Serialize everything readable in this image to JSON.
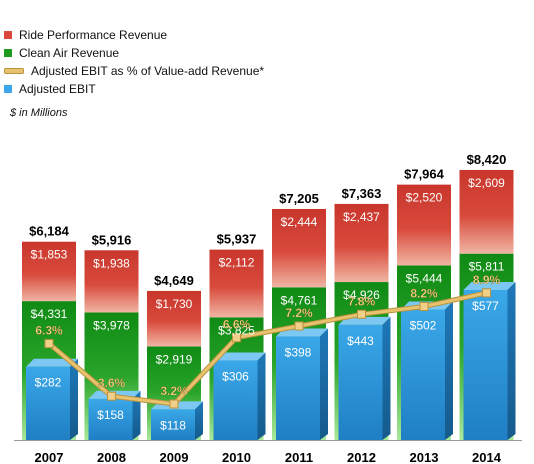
{
  "chart_data": {
    "type": "bar",
    "categories": [
      "2007",
      "2008",
      "2009",
      "2010",
      "2011",
      "2012",
      "2013",
      "2014"
    ],
    "series": [
      {
        "name": "Ride Performance Revenue",
        "values": [
          1853,
          1938,
          1730,
          2112,
          2444,
          2437,
          2520,
          2609
        ],
        "color": "#d9463a"
      },
      {
        "name": "Clean Air Revenue",
        "values": [
          4331,
          3978,
          2919,
          3825,
          4761,
          4926,
          5444,
          5811
        ],
        "color": "#1e9a1e"
      },
      {
        "name": "Adjusted EBIT as % of Value-add Revenue*",
        "type": "line",
        "values": [
          6.3,
          3.6,
          3.2,
          6.6,
          7.2,
          7.8,
          8.2,
          8.9
        ],
        "color": "#e8c36f"
      },
      {
        "name": "Adjusted EBIT",
        "values": [
          282,
          158,
          118,
          306,
          398,
          443,
          502,
          577
        ],
        "color": "#3aa8e8"
      }
    ],
    "totals": [
      6184,
      5916,
      4649,
      5937,
      7205,
      7363,
      7964,
      8420
    ],
    "currency_note": "$ in Millions",
    "value_prefix": "$",
    "percent_suffix": "%"
  }
}
